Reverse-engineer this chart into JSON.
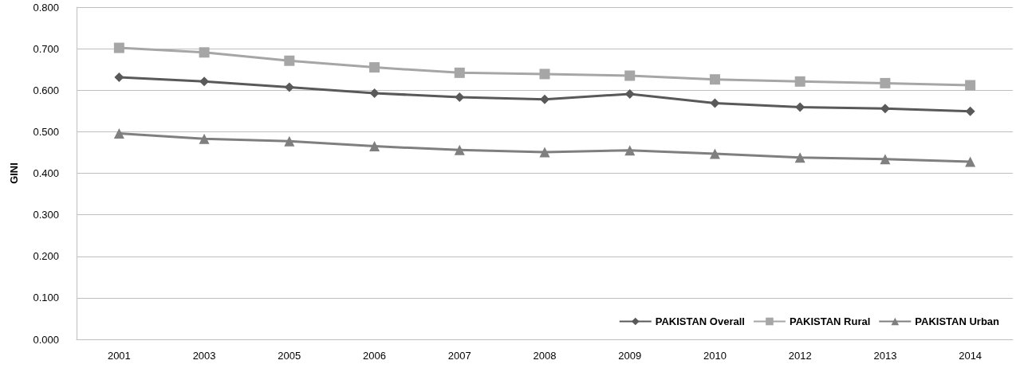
{
  "chart_data": {
    "type": "line",
    "ylabel": "GINI",
    "categories": [
      "2001",
      "2003",
      "2005",
      "2006",
      "2007",
      "2008",
      "2009",
      "2010",
      "2012",
      "2013",
      "2014"
    ],
    "series": [
      {
        "name": "PAKISTAN Overall",
        "color": "#595959",
        "marker": "diamond",
        "values": [
          0.631,
          0.621,
          0.607,
          0.593,
          0.583,
          0.578,
          0.591,
          0.569,
          0.559,
          0.556,
          0.549
        ]
      },
      {
        "name": "PAKISTAN Rural",
        "color": "#a6a6a6",
        "marker": "square",
        "values": [
          0.702,
          0.691,
          0.671,
          0.655,
          0.642,
          0.639,
          0.635,
          0.626,
          0.621,
          0.617,
          0.612
        ]
      },
      {
        "name": "PAKISTAN Urban",
        "color": "#7f7f7f",
        "marker": "triangle",
        "values": [
          0.496,
          0.483,
          0.477,
          0.465,
          0.456,
          0.451,
          0.455,
          0.447,
          0.438,
          0.434,
          0.428
        ]
      }
    ],
    "ylim": [
      0,
      0.8
    ],
    "yticks": [
      {
        "value": 0,
        "label": "0.000"
      },
      {
        "value": 0.1,
        "label": "0.100"
      },
      {
        "value": 0.2,
        "label": "0.200"
      },
      {
        "value": 0.3,
        "label": "0.300"
      },
      {
        "value": 0.4,
        "label": "0.400"
      },
      {
        "value": 0.5,
        "label": "0.500"
      },
      {
        "value": 0.6,
        "label": "0.600"
      },
      {
        "value": 0.7,
        "label": "0.700"
      },
      {
        "value": 0.8,
        "label": "0.800"
      }
    ],
    "grid": "y",
    "legend": "bottom right",
    "line_style": "solid"
  }
}
